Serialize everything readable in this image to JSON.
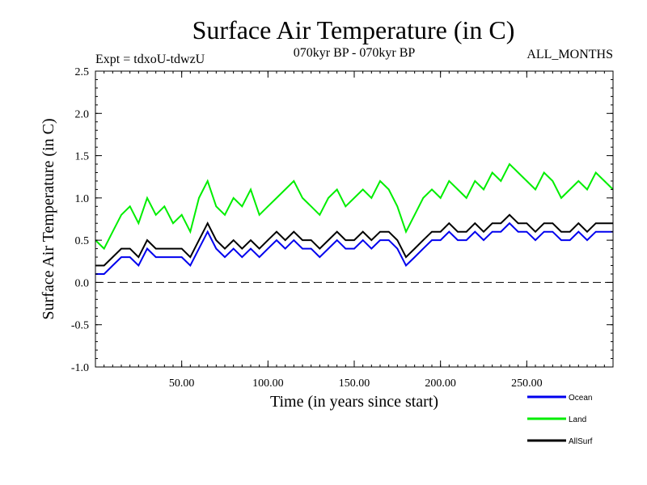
{
  "chart_data": {
    "type": "line",
    "title": "Surface Air Temperature (in C)",
    "subtitle_left": "Expt = tdxoU-tdwzU",
    "subtitle_center": "070kyr BP - 070kyr BP",
    "subtitle_right": "ALL_MONTHS",
    "xlabel": "Time (in years since start)",
    "ylabel": "Surface Air Temperature (in C)",
    "xlim": [
      0,
      300
    ],
    "ylim": [
      -1.0,
      2.5
    ],
    "x_ticks": [
      50,
      100,
      150,
      200,
      250
    ],
    "x_tick_labels": [
      "50.00",
      "100.00",
      "150.00",
      "200.00",
      "250.00"
    ],
    "y_ticks": [
      -1.0,
      -0.5,
      0.0,
      0.5,
      1.0,
      1.5,
      2.0,
      2.5
    ],
    "y_tick_labels": [
      "-1.0",
      "-0.5",
      "0.0",
      "0.5",
      "1.0",
      "1.5",
      "2.0",
      "2.5"
    ],
    "zero_line": true,
    "legend_position": "bottom-right",
    "series": [
      {
        "name": "Land",
        "color": "#00ee00",
        "x": [
          0,
          5,
          10,
          15,
          20,
          25,
          30,
          35,
          40,
          45,
          50,
          55,
          60,
          65,
          70,
          75,
          80,
          85,
          90,
          95,
          100,
          105,
          110,
          115,
          120,
          125,
          130,
          135,
          140,
          145,
          150,
          155,
          160,
          165,
          170,
          175,
          180,
          185,
          190,
          195,
          200,
          205,
          210,
          215,
          220,
          225,
          230,
          235,
          240,
          245,
          250,
          255,
          260,
          265,
          270,
          275,
          280,
          285,
          290,
          295,
          300
        ],
        "y": [
          0.5,
          0.4,
          0.6,
          0.8,
          0.9,
          0.7,
          1.0,
          0.8,
          0.9,
          0.7,
          0.8,
          0.6,
          1.0,
          1.2,
          0.9,
          0.8,
          1.0,
          0.9,
          1.1,
          0.8,
          0.9,
          1.0,
          1.1,
          1.2,
          1.0,
          0.9,
          0.8,
          1.0,
          1.1,
          0.9,
          1.0,
          1.1,
          1.0,
          1.2,
          1.1,
          0.9,
          0.6,
          0.8,
          1.0,
          1.1,
          1.0,
          1.2,
          1.1,
          1.0,
          1.2,
          1.1,
          1.3,
          1.2,
          1.4,
          1.3,
          1.2,
          1.1,
          1.3,
          1.2,
          1.0,
          1.1,
          1.2,
          1.1,
          1.3,
          1.2,
          1.1
        ]
      },
      {
        "name": "Ocean",
        "color": "#0000ee",
        "x": [
          0,
          5,
          10,
          15,
          20,
          25,
          30,
          35,
          40,
          45,
          50,
          55,
          60,
          65,
          70,
          75,
          80,
          85,
          90,
          95,
          100,
          105,
          110,
          115,
          120,
          125,
          130,
          135,
          140,
          145,
          150,
          155,
          160,
          165,
          170,
          175,
          180,
          185,
          190,
          195,
          200,
          205,
          210,
          215,
          220,
          225,
          230,
          235,
          240,
          245,
          250,
          255,
          260,
          265,
          270,
          275,
          280,
          285,
          290,
          295,
          300
        ],
        "y": [
          0.1,
          0.1,
          0.2,
          0.3,
          0.3,
          0.2,
          0.4,
          0.3,
          0.3,
          0.3,
          0.3,
          0.2,
          0.4,
          0.6,
          0.4,
          0.3,
          0.4,
          0.3,
          0.4,
          0.3,
          0.4,
          0.5,
          0.4,
          0.5,
          0.4,
          0.4,
          0.3,
          0.4,
          0.5,
          0.4,
          0.4,
          0.5,
          0.4,
          0.5,
          0.5,
          0.4,
          0.2,
          0.3,
          0.4,
          0.5,
          0.5,
          0.6,
          0.5,
          0.5,
          0.6,
          0.5,
          0.6,
          0.6,
          0.7,
          0.6,
          0.6,
          0.5,
          0.6,
          0.6,
          0.5,
          0.5,
          0.6,
          0.5,
          0.6,
          0.6,
          0.6
        ]
      },
      {
        "name": "AllSurf",
        "color": "#000000",
        "x": [
          0,
          5,
          10,
          15,
          20,
          25,
          30,
          35,
          40,
          45,
          50,
          55,
          60,
          65,
          70,
          75,
          80,
          85,
          90,
          95,
          100,
          105,
          110,
          115,
          120,
          125,
          130,
          135,
          140,
          145,
          150,
          155,
          160,
          165,
          170,
          175,
          180,
          185,
          190,
          195,
          200,
          205,
          210,
          215,
          220,
          225,
          230,
          235,
          240,
          245,
          250,
          255,
          260,
          265,
          270,
          275,
          280,
          285,
          290,
          295,
          300
        ],
        "y": [
          0.2,
          0.2,
          0.3,
          0.4,
          0.4,
          0.3,
          0.5,
          0.4,
          0.4,
          0.4,
          0.4,
          0.3,
          0.5,
          0.7,
          0.5,
          0.4,
          0.5,
          0.4,
          0.5,
          0.4,
          0.5,
          0.6,
          0.5,
          0.6,
          0.5,
          0.5,
          0.4,
          0.5,
          0.6,
          0.5,
          0.5,
          0.6,
          0.5,
          0.6,
          0.6,
          0.5,
          0.3,
          0.4,
          0.5,
          0.6,
          0.6,
          0.7,
          0.6,
          0.6,
          0.7,
          0.6,
          0.7,
          0.7,
          0.8,
          0.7,
          0.7,
          0.6,
          0.7,
          0.7,
          0.6,
          0.6,
          0.7,
          0.6,
          0.7,
          0.7,
          0.7
        ]
      }
    ],
    "legend": [
      {
        "label": "Ocean",
        "color": "#0000ee"
      },
      {
        "label": "Land",
        "color": "#00ee00"
      },
      {
        "label": "AllSurf",
        "color": "#000000"
      }
    ]
  }
}
